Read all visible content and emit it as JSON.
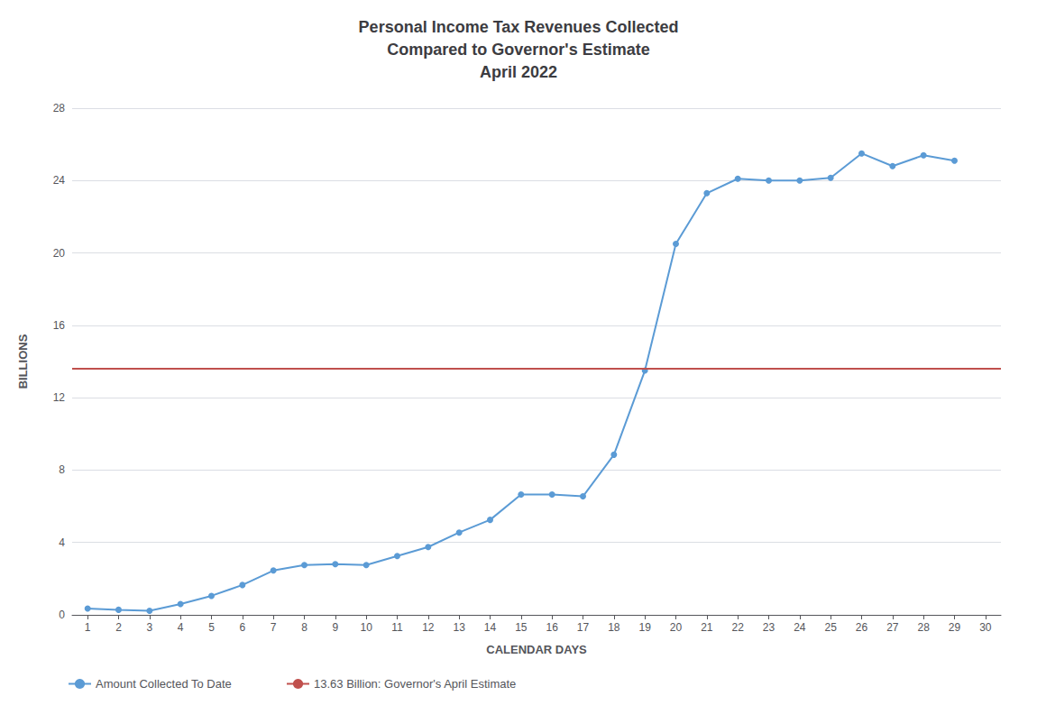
{
  "chart_data": {
    "type": "line",
    "title": "Personal Income Tax Revenues Collected\nCompared to Governor's Estimate\nApril 2022",
    "xlabel": "CALENDAR DAYS",
    "ylabel": "BILLIONS",
    "x": [
      1,
      2,
      3,
      4,
      5,
      6,
      7,
      8,
      9,
      10,
      11,
      12,
      13,
      14,
      15,
      16,
      17,
      18,
      19,
      20,
      21,
      22,
      23,
      24,
      25,
      26,
      27,
      28,
      29
    ],
    "series": [
      {
        "name": "Amount Collected To Date",
        "color": "#5B9BD5",
        "marker": "circle",
        "line_style": "solid",
        "values": [
          0.35,
          0.28,
          0.22,
          0.6,
          1.05,
          1.65,
          2.45,
          2.75,
          2.8,
          2.75,
          3.25,
          3.75,
          4.55,
          5.25,
          6.65,
          6.65,
          6.55,
          8.85,
          13.5,
          20.5,
          23.3,
          24.1,
          24.0,
          24.0,
          24.15,
          25.5,
          24.8,
          25.4,
          25.1
        ]
      }
    ],
    "reference_line": {
      "name": "13.63 Billion: Governor's April Estimate",
      "color": "#C0504D",
      "value": 13.63,
      "line_style": "solid"
    },
    "xlim": [
      0.5,
      30.5
    ],
    "xticks": [
      1,
      2,
      3,
      4,
      5,
      6,
      7,
      8,
      9,
      10,
      11,
      12,
      13,
      14,
      15,
      16,
      17,
      18,
      19,
      20,
      21,
      22,
      23,
      24,
      25,
      26,
      27,
      28,
      29,
      30
    ],
    "ylim": [
      0,
      28
    ],
    "yticks": [
      0,
      4,
      8,
      12,
      16,
      20,
      24,
      28
    ],
    "grid": true,
    "legend": "lower left"
  }
}
